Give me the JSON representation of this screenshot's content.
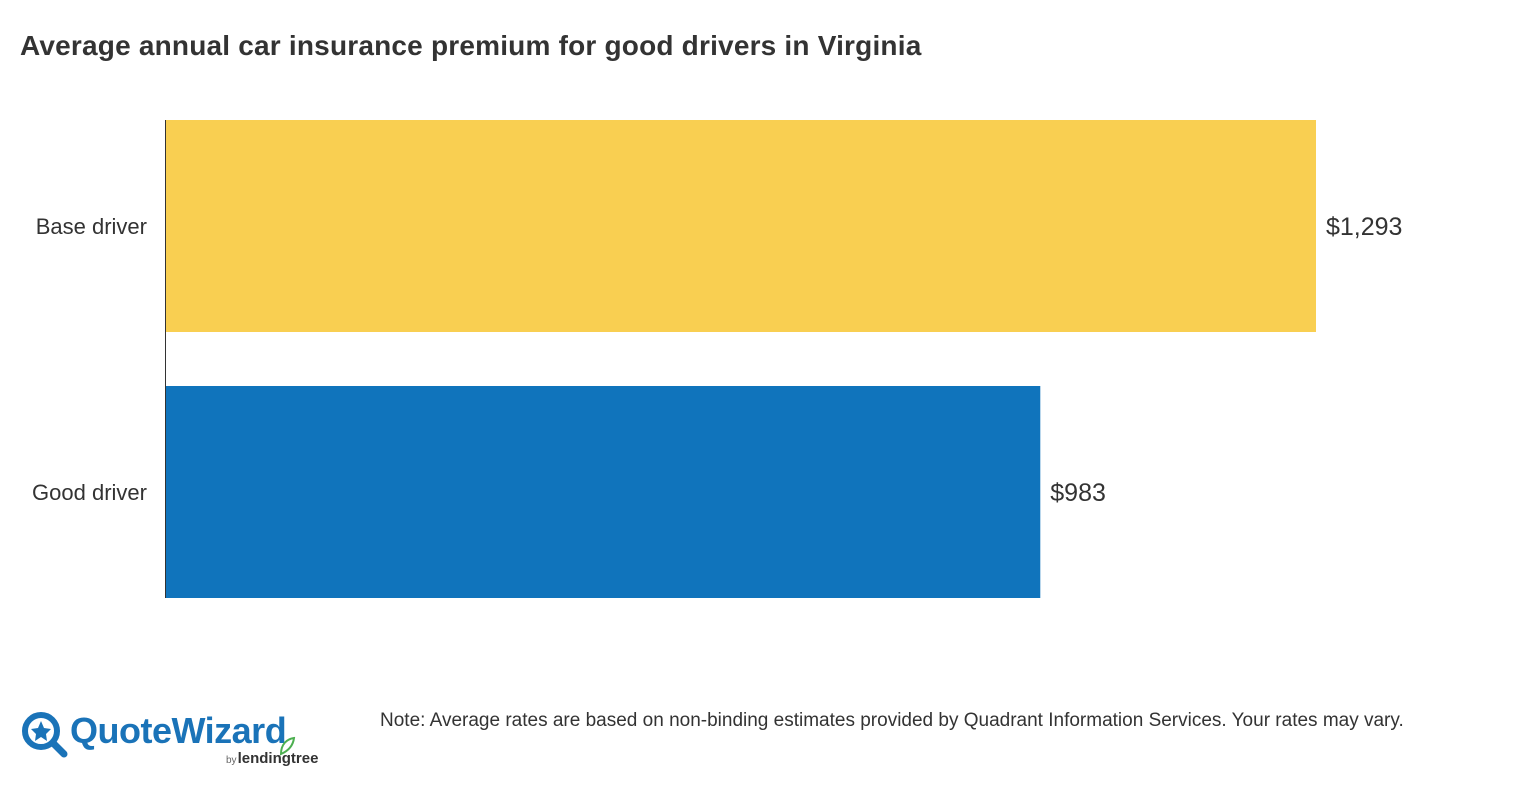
{
  "chart_data": {
    "type": "bar",
    "orientation": "horizontal",
    "title": "Average annual car insurance premium for good drivers in Virginia",
    "categories": [
      "Base driver",
      "Good driver"
    ],
    "values": [
      1293,
      983
    ],
    "value_labels": [
      "$1,293",
      "$983"
    ],
    "colors": [
      "#f9cf51",
      "#1074bc"
    ],
    "xlim": [
      0,
      1293
    ],
    "grid": false,
    "legend": "none"
  },
  "footer": {
    "logo": {
      "brand": "QuoteWizard",
      "by": "by",
      "parent": "lendingtree",
      "icon": "star-magnifier-icon",
      "brand_color": "#1a73b8",
      "leaf_color": "#4caf50"
    },
    "note": "Note: Average rates are based on non-binding estimates provided by Quadrant Information Services. Your rates may vary."
  }
}
